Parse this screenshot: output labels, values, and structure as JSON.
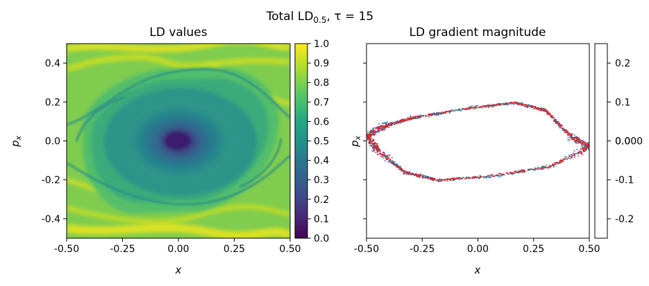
{
  "suptitle": {
    "main": "Total LD",
    "subscript": "0.5",
    "rest": ", τ = 15"
  },
  "chart_data": [
    {
      "type": "heatmap",
      "title": "LD values",
      "xlabel": "x",
      "ylabel": "p",
      "ylabel_subscript": "x",
      "xlim": [
        -0.5,
        0.5
      ],
      "ylim": [
        -0.5,
        0.5
      ],
      "x_ticks": [
        "-0.50",
        "-0.25",
        "0.00",
        "0.25",
        "0.50"
      ],
      "y_ticks": [
        "-0.4",
        "-0.2",
        "0.0",
        "0.2",
        "0.4"
      ],
      "colormap": "viridis",
      "colorbar": {
        "range": [
          0.0,
          1.0
        ],
        "ticks": [
          "0.0",
          "0.1",
          "0.2",
          "0.3",
          "0.4",
          "0.5",
          "0.6",
          "0.7",
          "0.8",
          "0.9",
          "1.0"
        ]
      },
      "description_values": {
        "center_min": 0.0,
        "background": 0.8,
        "rings": 0.6
      }
    },
    {
      "type": "scatter",
      "title": "LD gradient magnitude",
      "xlabel": "x",
      "ylabel": "p",
      "ylabel_subscript": "x",
      "xlim": [
        -0.5,
        0.5
      ],
      "ylim": [
        -0.5,
        0.5
      ],
      "x_ticks": [
        "-0.50",
        "-0.25",
        "0.00",
        "0.25",
        "0.50"
      ],
      "series": [
        {
          "color": "#1f77b4"
        },
        {
          "color": "#d62728"
        }
      ],
      "colorbar": {
        "range": [
          -0.25,
          0.25
        ],
        "ticks": [
          "-0.2",
          "-0.1",
          "0.000",
          "0.1",
          "0.2"
        ],
        "overlay_tick": "0.0"
      }
    }
  ]
}
